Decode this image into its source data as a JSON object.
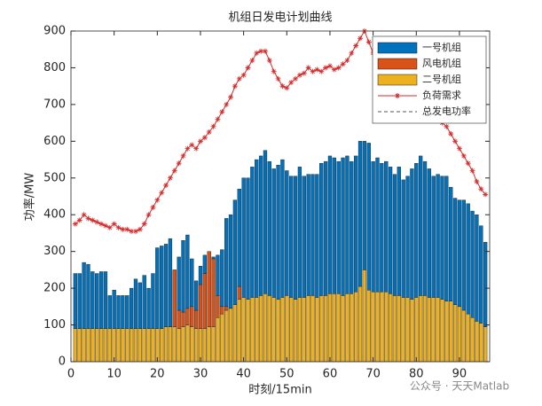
{
  "chart_data": {
    "type": "stacked-bar-line",
    "title": "机组日发电计划曲线",
    "x_label": "时刻/15min",
    "y_label": "功率/MW",
    "watermark": "公众号 · 天天Matlab",
    "x": [
      1,
      2,
      3,
      4,
      5,
      6,
      7,
      8,
      9,
      10,
      11,
      12,
      13,
      14,
      15,
      16,
      17,
      18,
      19,
      20,
      21,
      22,
      23,
      24,
      25,
      26,
      27,
      28,
      29,
      30,
      31,
      32,
      33,
      34,
      35,
      36,
      37,
      38,
      39,
      40,
      41,
      42,
      43,
      44,
      45,
      46,
      47,
      48,
      49,
      50,
      51,
      52,
      53,
      54,
      55,
      56,
      57,
      58,
      59,
      60,
      61,
      62,
      63,
      64,
      65,
      66,
      67,
      68,
      69,
      70,
      71,
      72,
      73,
      74,
      75,
      76,
      77,
      78,
      79,
      80,
      81,
      82,
      83,
      84,
      85,
      86,
      87,
      88,
      89,
      90,
      91,
      92,
      93,
      94,
      95,
      96
    ],
    "series": [
      {
        "name": "一号机组",
        "color": "#0072bd",
        "values": [
          150,
          150,
          180,
          175,
          155,
          150,
          155,
          155,
          90,
          105,
          90,
          90,
          90,
          110,
          135,
          125,
          145,
          110,
          150,
          220,
          225,
          225,
          240,
          0,
          145,
          195,
          200,
          130,
          80,
          50,
          50,
          0,
          5,
          110,
          155,
          240,
          255,
          285,
          265,
          325,
          330,
          355,
          375,
          380,
          390,
          365,
          350,
          365,
          375,
          340,
          330,
          335,
          355,
          330,
          330,
          330,
          335,
          360,
          365,
          375,
          370,
          360,
          375,
          375,
          360,
          370,
          395,
          350,
          400,
          355,
          365,
          350,
          355,
          345,
          330,
          350,
          320,
          330,
          355,
          365,
          380,
          365,
          350,
          330,
          335,
          335,
          340,
          310,
          290,
          290,
          300,
          300,
          290,
          290,
          265,
          230
        ]
      },
      {
        "name": "风电机组",
        "color": "#d95319",
        "values": [
          0,
          0,
          0,
          0,
          0,
          0,
          0,
          0,
          0,
          0,
          0,
          0,
          0,
          0,
          0,
          0,
          0,
          0,
          0,
          0,
          0,
          0,
          0,
          155,
          50,
          40,
          45,
          55,
          50,
          120,
          150,
          205,
          185,
          60,
          20,
          10,
          0,
          0,
          35,
          0,
          0,
          0,
          0,
          0,
          0,
          0,
          0,
          0,
          0,
          0,
          0,
          0,
          0,
          0,
          0,
          0,
          0,
          0,
          0,
          0,
          0,
          0,
          0,
          0,
          0,
          0,
          0,
          0,
          0,
          0,
          0,
          0,
          0,
          0,
          0,
          0,
          0,
          0,
          0,
          0,
          0,
          0,
          0,
          0,
          0,
          0,
          0,
          0,
          0,
          0,
          0,
          0,
          0,
          0,
          0,
          0
        ]
      },
      {
        "name": "二号机组",
        "color": "#edb120",
        "values": [
          90,
          90,
          90,
          90,
          90,
          90,
          90,
          90,
          90,
          90,
          90,
          90,
          90,
          90,
          90,
          90,
          90,
          90,
          90,
          90,
          90,
          95,
          95,
          95,
          90,
          95,
          100,
          95,
          90,
          90,
          90,
          95,
          95,
          120,
          130,
          140,
          145,
          155,
          170,
          175,
          170,
          175,
          175,
          180,
          185,
          180,
          175,
          170,
          175,
          180,
          175,
          170,
          175,
          175,
          180,
          180,
          175,
          180,
          180,
          185,
          185,
          185,
          180,
          185,
          185,
          190,
          205,
          250,
          195,
          190,
          190,
          190,
          190,
          185,
          180,
          180,
          175,
          175,
          170,
          175,
          180,
          180,
          175,
          175,
          175,
          170,
          165,
          165,
          155,
          150,
          140,
          130,
          120,
          110,
          105,
          95
        ]
      }
    ],
    "lines": [
      {
        "name": "负荷需求",
        "color": "#d42a2a",
        "marker": "*",
        "values": [
          375,
          385,
          400,
          390,
          385,
          380,
          375,
          370,
          365,
          375,
          365,
          360,
          360,
          355,
          355,
          360,
          375,
          400,
          420,
          440,
          460,
          480,
          500,
          520,
          540,
          560,
          580,
          590,
          580,
          600,
          610,
          625,
          640,
          660,
          680,
          700,
          720,
          750,
          770,
          780,
          800,
          820,
          840,
          845,
          845,
          820,
          790,
          770,
          750,
          745,
          760,
          770,
          780,
          785,
          800,
          790,
          795,
          790,
          800,
          805,
          795,
          800,
          810,
          820,
          840,
          860,
          880,
          900,
          870,
          840,
          820,
          810,
          800,
          790,
          780,
          770,
          760,
          740,
          720,
          700,
          690,
          680,
          670,
          665,
          660,
          650,
          640,
          620,
          600,
          580,
          560,
          540,
          520,
          490,
          470,
          455
        ]
      },
      {
        "name": "总发电功率",
        "color": "#555555",
        "dash": true
      }
    ],
    "xlim": [
      0,
      97
    ],
    "xticks": [
      0,
      10,
      20,
      30,
      40,
      50,
      60,
      70,
      80,
      90
    ],
    "ylim": [
      0,
      900
    ],
    "yticks": [
      0,
      100,
      200,
      300,
      400,
      500,
      600,
      700,
      800,
      900
    ],
    "legend": "top-right"
  }
}
